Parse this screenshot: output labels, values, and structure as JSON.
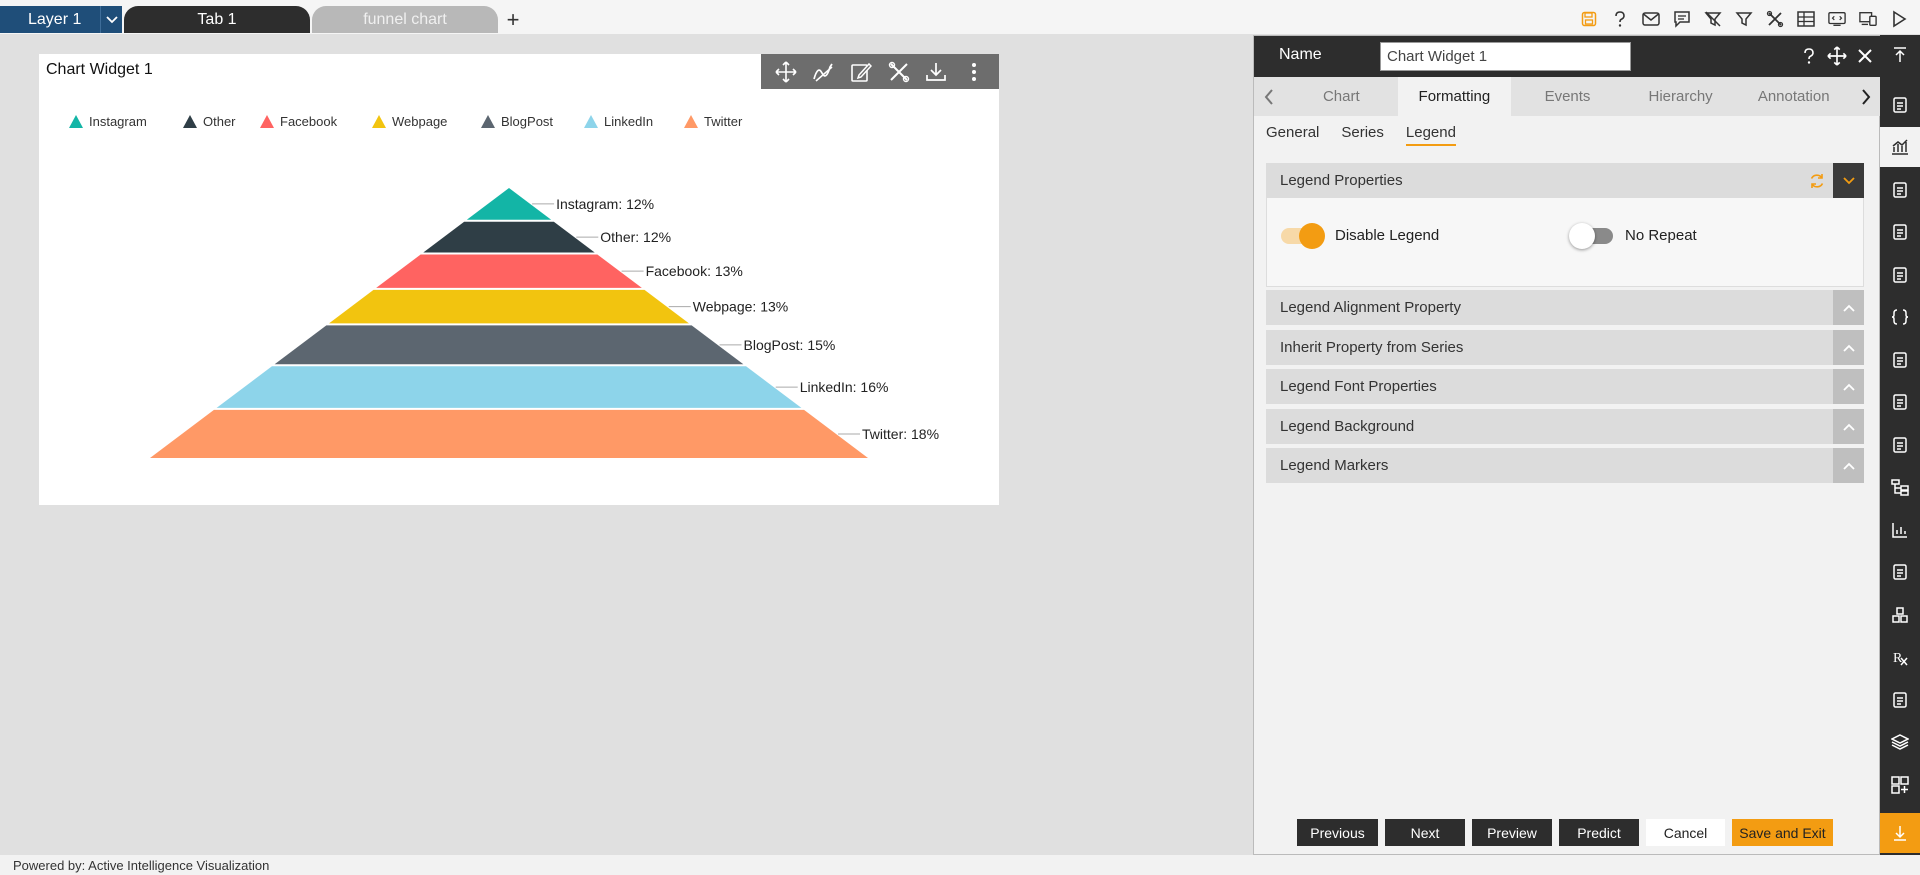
{
  "topbar": {
    "layer_label": "Layer 1",
    "tabs": [
      {
        "label": "Tab 1",
        "active": true
      },
      {
        "label": "funnel chart",
        "active": false
      }
    ],
    "add_tab": "+",
    "icons": [
      "save-icon",
      "help-icon",
      "mail-icon",
      "comment-icon",
      "clear-filter-icon",
      "filter-icon",
      "tools-icon",
      "table-icon",
      "embed-icon",
      "devices-icon",
      "play-icon"
    ]
  },
  "widget": {
    "title": "Chart Widget 1",
    "toolbar": [
      "move-icon",
      "draw-icon",
      "edit-icon",
      "settings-icon",
      "download-icon",
      "more-icon"
    ]
  },
  "chart_data": {
    "type": "funnel",
    "inverted": true,
    "title": "",
    "legend_position": "top-left",
    "categories": [
      "Instagram",
      "Other",
      "Facebook",
      "Webpage",
      "BlogPost",
      "LinkedIn",
      "Twitter"
    ],
    "values": [
      12,
      12,
      13,
      13,
      15,
      16,
      18
    ],
    "labels": [
      "Instagram: 12%",
      "Other: 12%",
      "Facebook: 13%",
      "Webpage: 13%",
      "BlogPost: 15%",
      "LinkedIn: 16%",
      "Twitter: 18%"
    ],
    "colors": [
      "#13b5a6",
      "#2f3e46",
      "#ff6361",
      "#f2c40f",
      "#5c6670",
      "#8dd4ea",
      "#ff9966"
    ]
  },
  "panel": {
    "name_label": "Name",
    "name_value": "Chart Widget 1",
    "main_tabs": [
      "Chart",
      "Formatting",
      "Events",
      "Hierarchy",
      "Annotation"
    ],
    "active_main_tab": "Formatting",
    "sub_tabs": [
      "General",
      "Series",
      "Legend"
    ],
    "active_sub_tab": "Legend",
    "sections": [
      "Legend Properties",
      "Legend Alignment Property",
      "Inherit Property from Series",
      "Legend Font Properties",
      "Legend Background",
      "Legend Markers"
    ],
    "toggles": [
      {
        "label": "Disable Legend",
        "on": true
      },
      {
        "label": "No Repeat",
        "on": false
      }
    ],
    "buttons": [
      "Previous",
      "Next",
      "Preview",
      "Predict",
      "Cancel",
      "Save and Exit"
    ]
  },
  "sidebar_icons": [
    "collapse-top-icon",
    "list-icon",
    "chart-icon",
    "map-icon",
    "report-icon",
    "document-icon",
    "code-icon",
    "image-icon",
    "grid-chart-icon",
    "file-icon",
    "tree-icon",
    "bar-chart-icon",
    "copy-icon",
    "cubes-icon",
    "rx-icon",
    "sheet-icon",
    "layers-icon",
    "add-widget-icon",
    "download-bottom-icon"
  ],
  "footer": {
    "powered_by": "Powered by: Active Intelligence Visualization"
  },
  "colors": {
    "accent": "#f39c12",
    "dark": "#2d2d2d",
    "layer_blue": "#1f4e79"
  }
}
